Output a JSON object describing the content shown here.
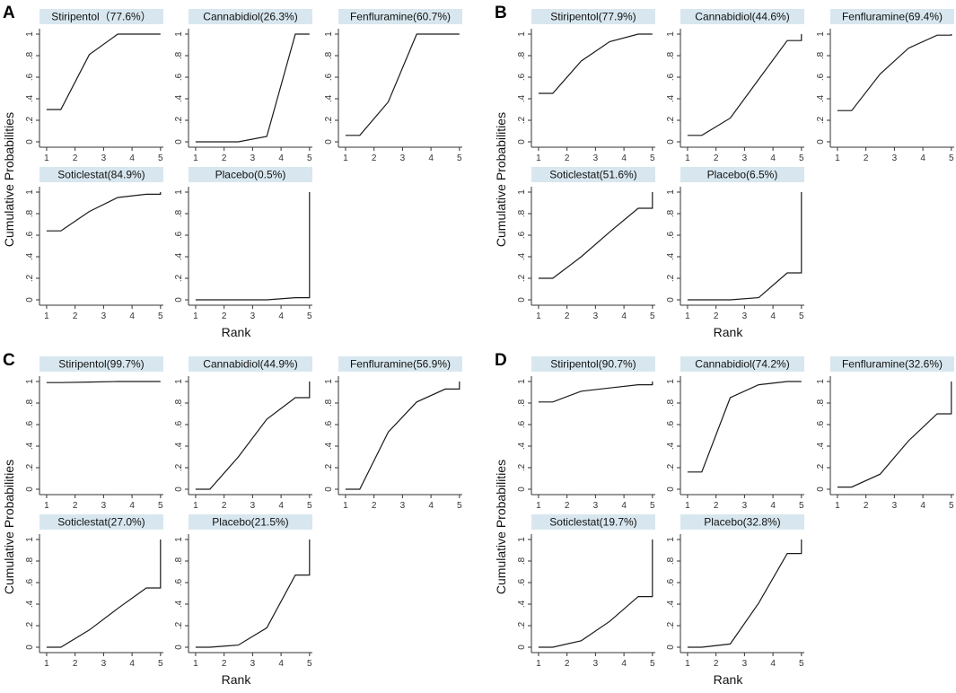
{
  "chart_data": {
    "type": "line",
    "ylabel": "Cumulative Probabilities",
    "xlabel": "Rank",
    "x_ticks": [
      "1",
      "2",
      "3",
      "4",
      "5"
    ],
    "y_ticks": [
      "0",
      ".2",
      ".4",
      ".6",
      ".8",
      "1"
    ],
    "xlim": [
      0.75,
      5.1
    ],
    "ylim": [
      -0.05,
      1.05
    ],
    "colors": {
      "title_strip": "#d8e7ef",
      "line": "#1a1a1a",
      "axis": "#333333"
    },
    "panels": [
      {
        "label": "A",
        "subplots": [
          {
            "title": "Stiripentol（77.6%）",
            "x": [
              1,
              1.5,
              2.5,
              3.5,
              4.5,
              5
            ],
            "y": [
              0.3,
              0.3,
              0.81,
              1.0,
              1.0,
              1.0
            ]
          },
          {
            "title": "Cannabidiol(26.3%)",
            "x": [
              1,
              1.5,
              2.5,
              3.5,
              4.5,
              5
            ],
            "y": [
              0.0,
              0.0,
              0.0,
              0.05,
              1.0,
              1.0
            ]
          },
          {
            "title": "Fenfluramine(60.7%)",
            "x": [
              1,
              1.5,
              2.5,
              3.5,
              4.5,
              5
            ],
            "y": [
              0.06,
              0.06,
              0.37,
              1.0,
              1.0,
              1.0
            ]
          },
          {
            "title": "Soticlestat(84.9%)",
            "x": [
              1,
              1.5,
              2.5,
              3.5,
              4.5,
              5,
              5
            ],
            "y": [
              0.64,
              0.64,
              0.82,
              0.95,
              0.98,
              0.98,
              1.0
            ]
          },
          {
            "title": "Placebo(0.5%)",
            "x": [
              1,
              1.5,
              2.5,
              3.5,
              4.5,
              5,
              5
            ],
            "y": [
              0.0,
              0.0,
              0.0,
              0.0,
              0.02,
              0.02,
              1.0
            ]
          }
        ]
      },
      {
        "label": "B",
        "subplots": [
          {
            "title": "Stiripentol(77.9%)",
            "x": [
              1,
              1.5,
              2.5,
              3.5,
              4.5,
              5
            ],
            "y": [
              0.45,
              0.45,
              0.75,
              0.93,
              1.0,
              1.0
            ]
          },
          {
            "title": "Cannabidiol(44.6%)",
            "x": [
              1,
              1.5,
              2.5,
              3.5,
              4.5,
              5,
              5
            ],
            "y": [
              0.06,
              0.06,
              0.22,
              0.58,
              0.94,
              0.94,
              1.0
            ]
          },
          {
            "title": "Fenfluramine(69.4%)",
            "x": [
              1,
              1.5,
              2.5,
              3.5,
              4.5,
              5,
              5
            ],
            "y": [
              0.29,
              0.29,
              0.63,
              0.87,
              0.99,
              0.99,
              1.0
            ]
          },
          {
            "title": "Soticlestat(51.6%)",
            "x": [
              1,
              1.5,
              2.5,
              3.5,
              4.5,
              5,
              5
            ],
            "y": [
              0.2,
              0.2,
              0.4,
              0.63,
              0.85,
              0.85,
              1.0
            ]
          },
          {
            "title": "Placebo(6.5%)",
            "x": [
              1,
              1.5,
              2.5,
              3.5,
              4.5,
              5,
              5
            ],
            "y": [
              0.0,
              0.0,
              0.0,
              0.02,
              0.25,
              0.25,
              1.0
            ]
          }
        ]
      },
      {
        "label": "C",
        "subplots": [
          {
            "title": "Stiripentol(99.7%)",
            "x": [
              1,
              1.5,
              2.5,
              3.5,
              4.5,
              5
            ],
            "y": [
              0.99,
              0.99,
              0.995,
              1.0,
              1.0,
              1.0
            ]
          },
          {
            "title": "Cannabidiol(44.9%)",
            "x": [
              1,
              1.5,
              2.5,
              3.5,
              4.5,
              5,
              5
            ],
            "y": [
              0.0,
              0.0,
              0.3,
              0.65,
              0.85,
              0.85,
              1.0
            ]
          },
          {
            "title": "Fenfluramine(56.9%)",
            "x": [
              1,
              1.5,
              2.5,
              3.5,
              4.5,
              5,
              5
            ],
            "y": [
              0.0,
              0.0,
              0.53,
              0.81,
              0.93,
              0.93,
              1.0
            ]
          },
          {
            "title": "Soticlestat(27.0%)",
            "x": [
              1,
              1.5,
              2.5,
              3.5,
              4.5,
              5,
              5
            ],
            "y": [
              0.0,
              0.0,
              0.16,
              0.36,
              0.55,
              0.55,
              1.0
            ]
          },
          {
            "title": "Placebo(21.5%)",
            "x": [
              1,
              1.5,
              2.5,
              3.5,
              4.5,
              5,
              5
            ],
            "y": [
              0.0,
              0.0,
              0.02,
              0.18,
              0.67,
              0.67,
              1.0
            ]
          }
        ]
      },
      {
        "label": "D",
        "subplots": [
          {
            "title": "Stiripentol(90.7%)",
            "x": [
              1,
              1.5,
              2.5,
              3.5,
              4.5,
              5,
              5
            ],
            "y": [
              0.81,
              0.81,
              0.91,
              0.94,
              0.97,
              0.97,
              1.0
            ]
          },
          {
            "title": "Cannabidiol(74.2%)",
            "x": [
              1,
              1.5,
              2.5,
              3.5,
              4.5,
              5
            ],
            "y": [
              0.16,
              0.16,
              0.85,
              0.97,
              1.0,
              1.0
            ]
          },
          {
            "title": "Fenfluramine(32.6%)",
            "x": [
              1,
              1.5,
              2.5,
              3.5,
              4.5,
              5,
              5
            ],
            "y": [
              0.02,
              0.02,
              0.14,
              0.45,
              0.7,
              0.7,
              1.0
            ]
          },
          {
            "title": "Soticlestat(19.7%)",
            "x": [
              1,
              1.5,
              2.5,
              3.5,
              4.5,
              5,
              5
            ],
            "y": [
              0.0,
              0.0,
              0.06,
              0.24,
              0.47,
              0.47,
              1.0
            ]
          },
          {
            "title": "Placebo(32.8%)",
            "x": [
              1,
              1.5,
              2.5,
              3.5,
              4.5,
              5,
              5
            ],
            "y": [
              0.0,
              0.0,
              0.03,
              0.41,
              0.87,
              0.87,
              1.0
            ]
          }
        ]
      }
    ]
  }
}
